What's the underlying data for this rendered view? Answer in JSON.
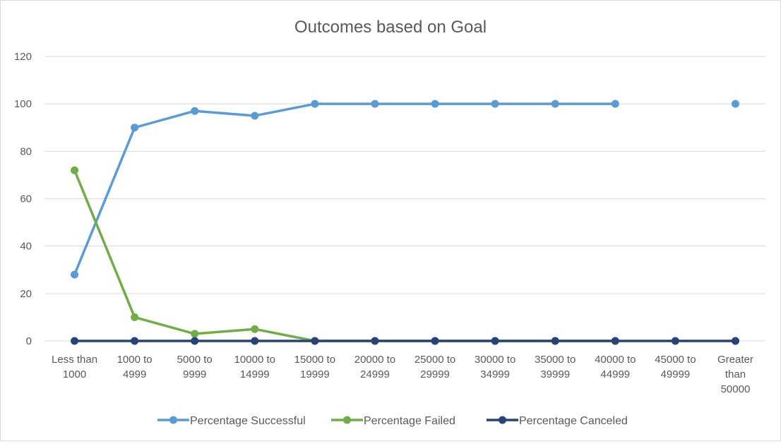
{
  "chart_data": {
    "type": "line",
    "title": "Outcomes based on Goal",
    "xlabel": "",
    "ylabel": "",
    "ylim": [
      0,
      120
    ],
    "yticks": [
      "0",
      "20",
      "40",
      "60",
      "80",
      "100",
      "120"
    ],
    "grid": "horizontal",
    "legend_position": "bottom",
    "categories": [
      [
        "Less than",
        "1000"
      ],
      [
        "1000 to",
        "4999"
      ],
      [
        "5000 to",
        "9999"
      ],
      [
        "10000 to",
        "14999"
      ],
      [
        "15000 to",
        "19999"
      ],
      [
        "20000 to",
        "24999"
      ],
      [
        "25000 to",
        "29999"
      ],
      [
        "30000 to",
        "34999"
      ],
      [
        "35000 to",
        "39999"
      ],
      [
        "40000 to",
        "44999"
      ],
      [
        "45000 to",
        "49999"
      ],
      [
        "Greater",
        "than",
        "50000"
      ]
    ],
    "series": [
      {
        "name": "Percentage Successful",
        "color": "#5b9bd5",
        "values": [
          28,
          90,
          97,
          95,
          100,
          100,
          100,
          100,
          100,
          100,
          null,
          100
        ]
      },
      {
        "name": "Percentage Failed",
        "color": "#70ad47",
        "values": [
          72,
          10,
          3,
          5,
          0,
          0,
          0,
          0,
          0,
          0,
          null,
          0
        ]
      },
      {
        "name": "Percentage Canceled",
        "color": "#264478",
        "values": [
          0,
          0,
          0,
          0,
          0,
          0,
          0,
          0,
          0,
          0,
          0,
          0
        ]
      }
    ]
  }
}
